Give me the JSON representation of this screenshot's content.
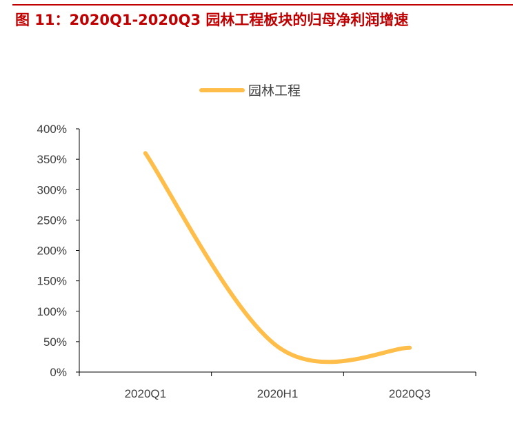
{
  "figure_title": "图  11：2020Q1-2020Q3 园林工程板块的归母净利润增速",
  "colors": {
    "title": "#c00000",
    "series": "#FFBE4A",
    "axis": "#000000",
    "text": "#404040"
  },
  "chart_data": {
    "type": "line",
    "categories": [
      "2020Q1",
      "2020H1",
      "2020Q3"
    ],
    "series": [
      {
        "name": "园林工程",
        "values": [
          3.6,
          0.42,
          0.4
        ]
      }
    ],
    "ylim": [
      0,
      4.0
    ],
    "yticks": [
      "0%",
      "50%",
      "100%",
      "150%",
      "200%",
      "250%",
      "300%",
      "350%",
      "400%"
    ],
    "legend": "top-center",
    "grid": false,
    "smooth": true
  }
}
